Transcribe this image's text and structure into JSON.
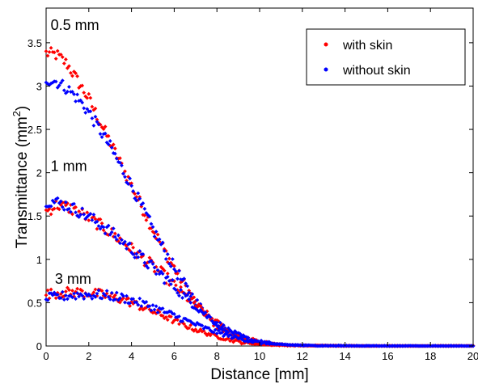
{
  "chart_data": {
    "type": "scatter",
    "title": "",
    "xlabel": "Distance  [mm]",
    "ylabel": "Transmittance (mm²)",
    "ylabel_text": "Transmittance (mm",
    "ylabel_superscript": "2",
    "ylabel_close": ")",
    "xlim": [
      0,
      20
    ],
    "ylim": [
      0,
      3.9
    ],
    "xticks": [
      0,
      2,
      4,
      6,
      8,
      10,
      12,
      14,
      16,
      18,
      20
    ],
    "yticks": [
      0,
      0.5,
      1,
      1.5,
      2,
      2.5,
      3,
      3.5
    ],
    "grid": false,
    "legend_position": "top-right",
    "legend": [
      {
        "label": "with skin",
        "color": "#ff0000"
      },
      {
        "label": "without skin",
        "color": "#0000ff"
      }
    ],
    "annotations": [
      {
        "text": "0.5 mm",
        "x": 0.1,
        "y": 3.65
      },
      {
        "text": "1 mm",
        "x": 0.1,
        "y": 2.02
      },
      {
        "text": "3 mm",
        "x": 0.3,
        "y": 0.72
      }
    ],
    "series": [
      {
        "name": "with skin",
        "color": "#ff0000",
        "group": "0.5 mm",
        "x": [
          0,
          0.5,
          1,
          1.5,
          2,
          2.5,
          3,
          3.5,
          4,
          4.5,
          5,
          5.5,
          6,
          6.5,
          7,
          7.5,
          8,
          8.5,
          9,
          9.5,
          10,
          10.5,
          11,
          11.5,
          12,
          13,
          14,
          15,
          16,
          17,
          18,
          19,
          20
        ],
        "y": [
          3.38,
          3.36,
          3.25,
          3.05,
          2.85,
          2.6,
          2.35,
          2.1,
          1.85,
          1.6,
          1.35,
          1.12,
          0.9,
          0.7,
          0.5,
          0.35,
          0.22,
          0.15,
          0.09,
          0.06,
          0.04,
          0.025,
          0.015,
          0.01,
          0.007,
          0.004,
          0.002,
          0.001,
          0,
          0,
          0,
          0,
          0
        ]
      },
      {
        "name": "without skin",
        "color": "#0000ff",
        "group": "0.5 mm",
        "x": [
          0,
          0.5,
          1,
          1.5,
          2,
          2.5,
          3,
          3.5,
          4,
          4.5,
          5,
          5.5,
          6,
          6.5,
          7,
          7.5,
          8,
          8.5,
          9,
          9.5,
          10,
          10.5,
          11,
          11.5,
          12,
          13,
          14,
          15,
          16,
          17,
          18,
          19,
          20
        ],
        "y": [
          3.08,
          3.05,
          2.97,
          2.85,
          2.7,
          2.5,
          2.3,
          2.07,
          1.85,
          1.6,
          1.35,
          1.12,
          0.9,
          0.7,
          0.52,
          0.37,
          0.25,
          0.17,
          0.11,
          0.07,
          0.05,
          0.03,
          0.02,
          0.012,
          0.008,
          0.004,
          0.002,
          0.001,
          0,
          0,
          0,
          0,
          0
        ]
      },
      {
        "name": "with skin",
        "color": "#ff0000",
        "group": "1 mm",
        "x": [
          0,
          0.5,
          1,
          1.5,
          2,
          2.5,
          3,
          3.5,
          4,
          4.5,
          5,
          5.5,
          6,
          6.5,
          7,
          7.5,
          8,
          8.5,
          9,
          9.5,
          10,
          10.5,
          11,
          11.5,
          12,
          13,
          14,
          15,
          16,
          17,
          18,
          19,
          20
        ],
        "y": [
          1.55,
          1.63,
          1.6,
          1.55,
          1.48,
          1.4,
          1.31,
          1.22,
          1.12,
          1.02,
          0.92,
          0.82,
          0.7,
          0.58,
          0.47,
          0.37,
          0.27,
          0.19,
          0.13,
          0.08,
          0.05,
          0.03,
          0.02,
          0.012,
          0.008,
          0.004,
          0.002,
          0.001,
          0,
          0,
          0,
          0,
          0
        ]
      },
      {
        "name": "without skin",
        "color": "#0000ff",
        "group": "1 mm",
        "x": [
          0,
          0.5,
          1,
          1.5,
          2,
          2.5,
          3,
          3.5,
          4,
          4.5,
          5,
          5.5,
          6,
          6.5,
          7,
          7.5,
          8,
          8.5,
          9,
          9.5,
          10,
          10.5,
          11,
          11.5,
          12,
          13,
          14,
          15,
          16,
          17,
          18,
          19,
          20
        ],
        "y": [
          1.68,
          1.66,
          1.62,
          1.56,
          1.49,
          1.41,
          1.32,
          1.22,
          1.12,
          1.01,
          0.9,
          0.8,
          0.69,
          0.57,
          0.46,
          0.36,
          0.27,
          0.19,
          0.13,
          0.08,
          0.05,
          0.03,
          0.02,
          0.012,
          0.008,
          0.004,
          0.002,
          0.001,
          0,
          0,
          0,
          0,
          0
        ]
      },
      {
        "name": "with skin",
        "color": "#ff0000",
        "group": "3 mm",
        "x": [
          0,
          0.5,
          1,
          1.5,
          2,
          2.5,
          3,
          3.5,
          4,
          4.5,
          5,
          5.5,
          6,
          6.5,
          7,
          7.5,
          8,
          8.5,
          9,
          9.5,
          10,
          10.5,
          11,
          11.5,
          12,
          13,
          14,
          15,
          16,
          17,
          18,
          19,
          20
        ],
        "y": [
          0.6,
          0.61,
          0.62,
          0.62,
          0.61,
          0.6,
          0.57,
          0.54,
          0.5,
          0.45,
          0.4,
          0.35,
          0.29,
          0.24,
          0.19,
          0.15,
          0.11,
          0.08,
          0.05,
          0.03,
          0.02,
          0.012,
          0.008,
          0.005,
          0.003,
          0.002,
          0.001,
          0,
          0,
          0,
          0,
          0,
          0
        ]
      },
      {
        "name": "without skin",
        "color": "#0000ff",
        "group": "3 mm",
        "x": [
          0,
          0.5,
          1,
          1.5,
          2,
          2.5,
          3,
          3.5,
          4,
          4.5,
          5,
          5.5,
          6,
          6.5,
          7,
          7.5,
          8,
          8.5,
          9,
          9.5,
          10,
          10.5,
          11,
          11.5,
          12,
          13,
          14,
          15,
          16,
          17,
          18,
          19,
          20
        ],
        "y": [
          0.55,
          0.57,
          0.58,
          0.59,
          0.59,
          0.59,
          0.58,
          0.56,
          0.53,
          0.49,
          0.45,
          0.4,
          0.35,
          0.3,
          0.25,
          0.2,
          0.16,
          0.12,
          0.09,
          0.06,
          0.04,
          0.025,
          0.015,
          0.01,
          0.006,
          0.003,
          0.002,
          0.001,
          0,
          0,
          0,
          0,
          0
        ]
      }
    ]
  }
}
